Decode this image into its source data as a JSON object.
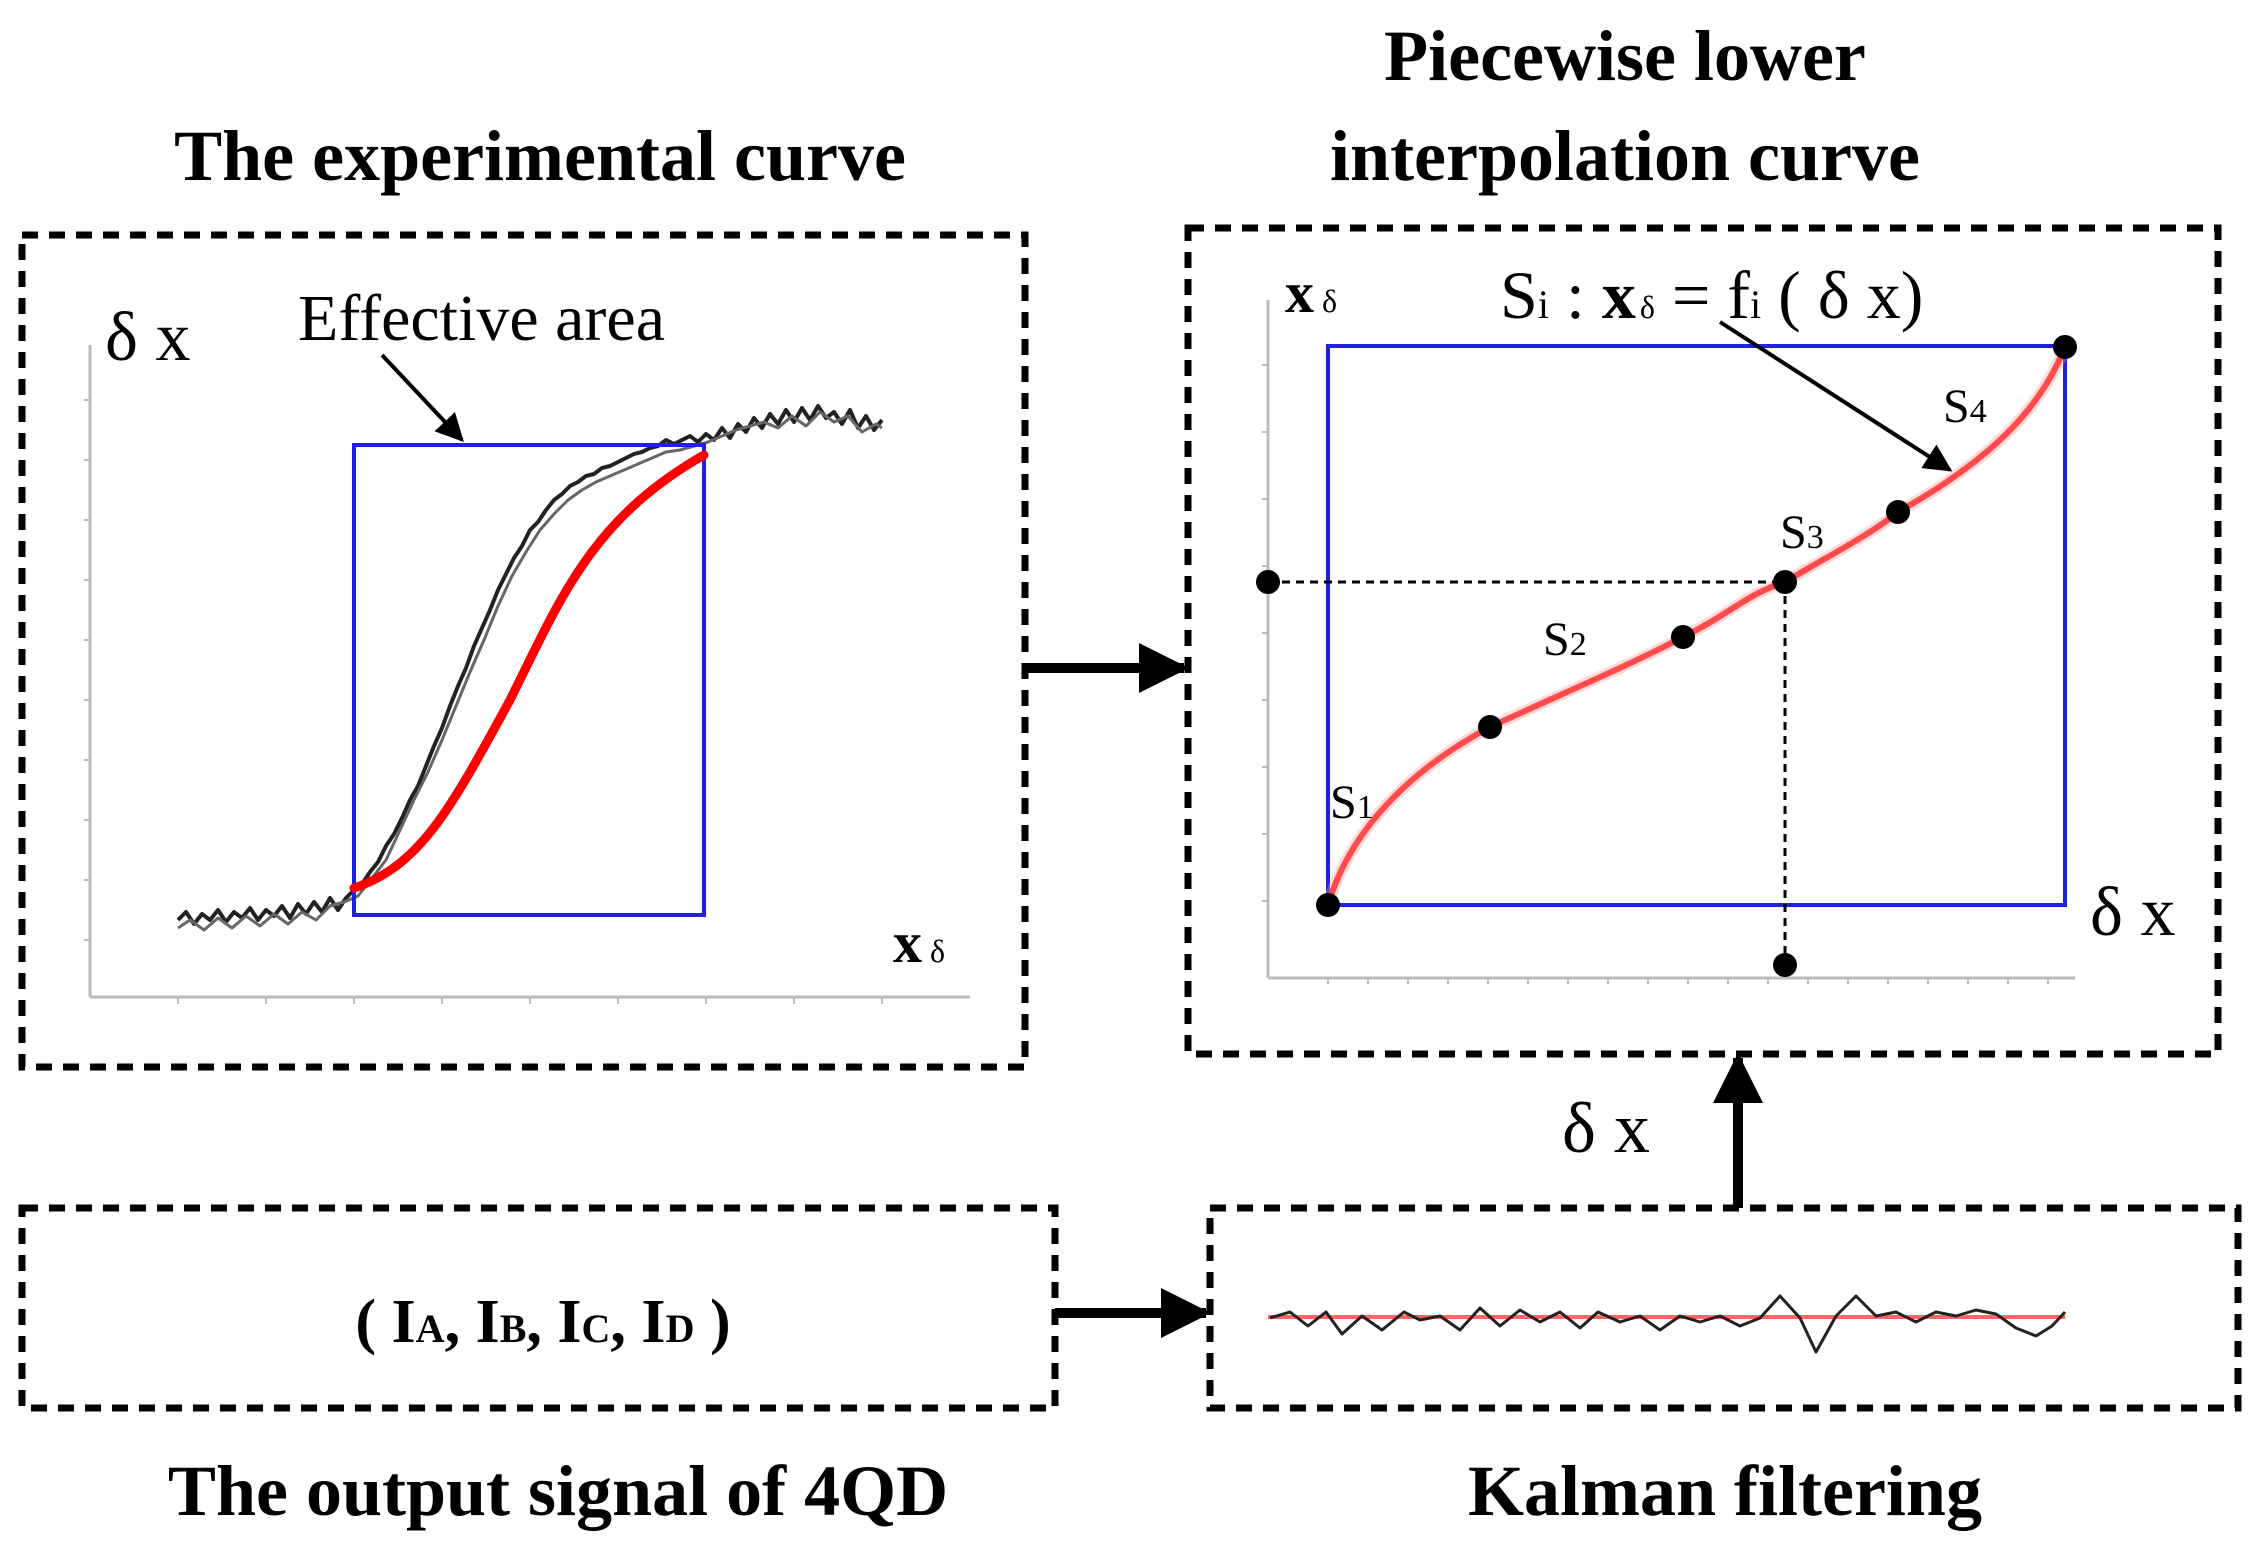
{
  "titles": {
    "experimental": "The experimental curve",
    "piecewise_line1": "Piecewise lower",
    "piecewise_line2": "interpolation curve",
    "output_signal": "The output signal of 4QD",
    "kalman": "Kalman filtering"
  },
  "experimental_panel": {
    "y_axis_label": "δ x",
    "x_axis_label_main": "x",
    "x_axis_label_sub": "δ",
    "effective_area_label": "Effective area"
  },
  "interpolation_panel": {
    "y_axis_label_main": "x",
    "y_axis_label_sub": "δ",
    "x_axis_label": "δ x",
    "formula": {
      "s": "S",
      "s_sub": "i",
      "colon": " : ",
      "x": "x",
      "x_sub": "δ",
      "eq_f": " = f",
      "f_sub": "i",
      "arg": "  ( δ x)"
    },
    "segments": [
      {
        "main": "S",
        "sub": "1"
      },
      {
        "main": "S",
        "sub": "2"
      },
      {
        "main": "S",
        "sub": "3"
      },
      {
        "main": "S",
        "sub": "4"
      }
    ]
  },
  "feedback_label": "δ x",
  "signal_box": {
    "open": "( ",
    "terms": [
      {
        "main": "I",
        "sub": "A",
        "sep": ", "
      },
      {
        "main": "I",
        "sub": "B",
        "sep": ", "
      },
      {
        "main": "I",
        "sub": "C",
        "sep": ", "
      },
      {
        "main": "I",
        "sub": "D",
        "sep": " "
      }
    ],
    "close": ")"
  },
  "colors": {
    "frame": "#000000",
    "area_box": "#2020e0",
    "curve": "#ff0000",
    "noise": "#222222"
  }
}
